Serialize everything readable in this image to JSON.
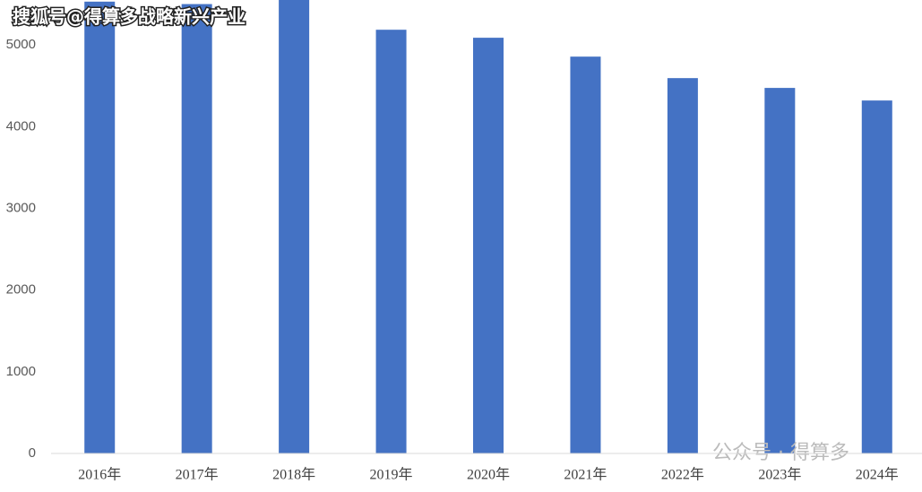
{
  "chart_data": {
    "type": "bar",
    "categories": [
      "2016年",
      "2017年",
      "2018年",
      "2019年",
      "2020年",
      "2021年",
      "2022年",
      "2023年",
      "2024年"
    ],
    "values": [
      5530,
      5500,
      5600,
      5186,
      5088,
      4857,
      4594,
      4474,
      4320
    ],
    "color": "#4472c4",
    "ylim": [
      0,
      5550
    ],
    "yticks": [
      0,
      1000,
      2000,
      3000,
      4000,
      5000
    ],
    "grid": false
  },
  "watermarks": {
    "top": "搜狐号@得算多战略新兴产业",
    "bottom": "公众号 · 得算多"
  }
}
